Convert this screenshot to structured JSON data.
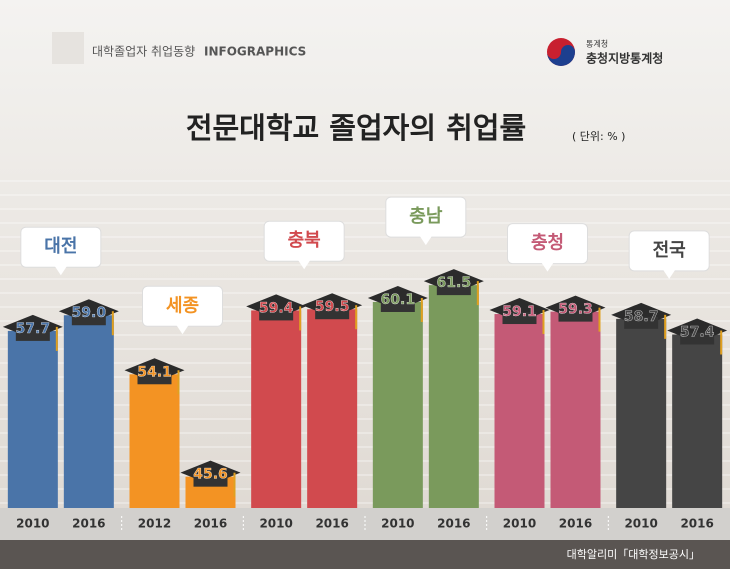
{
  "header": {
    "subtitle": "대학졸업자 취업동향",
    "tag": "INFOGRAPHICS",
    "org_small": "통계청",
    "org": "충청지방통계청"
  },
  "chart_data": {
    "type": "bar",
    "title": "전문대학교 졸업자의 취업률",
    "unit": "( 단위: % )",
    "ylim": [
      43,
      64
    ],
    "groups": [
      {
        "name": "대전",
        "color": "#4a74a8",
        "categories": [
          "2010",
          "2016"
        ],
        "values": [
          57.7,
          59.0
        ],
        "value_labels": [
          "57.7",
          "59.0"
        ]
      },
      {
        "name": "세종",
        "color": "#f39323",
        "categories": [
          "2012",
          "2016"
        ],
        "values": [
          54.1,
          45.6
        ],
        "value_labels": [
          "54.1",
          "45.6"
        ]
      },
      {
        "name": "충북",
        "color": "#d14a4e",
        "categories": [
          "2010",
          "2016"
        ],
        "values": [
          59.4,
          59.5
        ],
        "value_labels": [
          "59.4",
          "59.5"
        ]
      },
      {
        "name": "충남",
        "color": "#7a9a5c",
        "categories": [
          "2010",
          "2016"
        ],
        "values": [
          60.1,
          61.5
        ],
        "value_labels": [
          "60.1",
          "61.5"
        ]
      },
      {
        "name": "충청",
        "color": "#c45a76",
        "categories": [
          "2010",
          "2016"
        ],
        "values": [
          59.1,
          59.3
        ],
        "value_labels": [
          "59.1",
          "59.3"
        ]
      },
      {
        "name": "전국",
        "color": "#454545",
        "categories": [
          "2010",
          "2016"
        ],
        "values": [
          58.7,
          57.4
        ],
        "value_labels": [
          "58.7",
          "57.4"
        ]
      }
    ],
    "source": "대학알리미「대학정보공시」"
  }
}
